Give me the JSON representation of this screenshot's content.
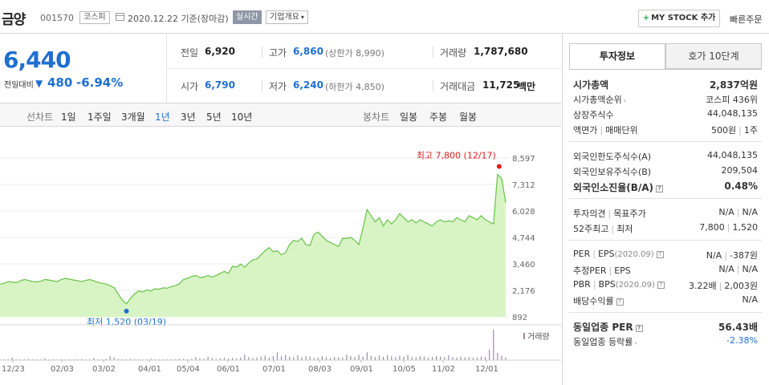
{
  "header": {
    "name": "금양",
    "code": "001570",
    "market": "코스피",
    "date": "2020.12.22 기준(장마감)",
    "realtime": "실시간",
    "company_info": "기업개요",
    "mystock_label": "MY STOCK 추가",
    "quick_order": "빠른주문"
  },
  "price": {
    "current": "6,440",
    "change_label": "전일대비",
    "change_arrow": "▼",
    "change_value": "480",
    "change_pct": "-6.94%"
  },
  "quote": {
    "prev_label": "전일",
    "prev": "6,920",
    "high_label": "고가",
    "high": "6,860",
    "upper_limit": "(상한가 8,990)",
    "volume_label": "거래량",
    "volume": "1,787,680",
    "open_label": "시가",
    "open": "6,790",
    "low_label": "저가",
    "low": "6,240",
    "lower_limit": "(하한가 4,850)",
    "amount_label": "거래대금",
    "amount": "11,725",
    "amount_unit": "백만"
  },
  "chart_tabs": {
    "line_label": "선차트",
    "line": [
      "1일",
      "1주일",
      "3개월",
      "1년",
      "3년",
      "5년",
      "10년"
    ],
    "active": "1년",
    "candle_label": "봉차트",
    "candle": [
      "일봉",
      "주봉",
      "월봉"
    ]
  },
  "chart_data": {
    "type": "area",
    "y_ticks": [
      "8,597",
      "7,312",
      "6,028",
      "4,744",
      "3,460",
      "2,176",
      "892"
    ],
    "ylim": [
      892,
      8597
    ],
    "x_ticks": [
      "12/23",
      "02/03",
      "03/02",
      "04/01",
      "05/04",
      "06/01",
      "07/01",
      "08/03",
      "09/01",
      "10/05",
      "11/02",
      "12/01"
    ],
    "values": [
      2480,
      2520,
      2600,
      2580,
      2550,
      2640,
      2700,
      2660,
      2600,
      2590,
      2620,
      2700,
      2680,
      2640,
      2600,
      2700,
      2760,
      2720,
      2680,
      2650,
      2600,
      2660,
      2700,
      2640,
      2560,
      2520,
      2480,
      2400,
      2300,
      2000,
      1700,
      1520,
      1800,
      2000,
      2150,
      2100,
      2200,
      2150,
      2250,
      2230,
      2300,
      2280,
      2360,
      2400,
      2500,
      2700,
      2760,
      2850,
      2900,
      2800,
      2820,
      2900,
      2820,
      2900,
      3000,
      3100,
      3000,
      3350,
      3300,
      3450,
      3300,
      3500,
      3650,
      3700,
      3900,
      4100,
      4250,
      4050,
      4100,
      3900,
      4000,
      4400,
      4600,
      4550,
      4700,
      4400,
      4350,
      4900,
      5000,
      4800,
      4600,
      4500,
      4400,
      4300,
      4700,
      4700,
      4750,
      4600,
      4400,
      5200,
      6100,
      5800,
      5500,
      5700,
      5300,
      5600,
      5400,
      5600,
      5900,
      5700,
      5500,
      5600,
      5450,
      5600,
      5500,
      5400,
      5300,
      5500,
      5600,
      5500,
      5550,
      5500,
      5700,
      5600,
      5500,
      5800,
      5700,
      5600,
      5800,
      5600,
      5500,
      5400,
      7800,
      7600,
      6440
    ],
    "volume": [
      2,
      1,
      1,
      6,
      2,
      1,
      2,
      3,
      1,
      1,
      1,
      4,
      2,
      1,
      1,
      2,
      1,
      1,
      1,
      2,
      3,
      1,
      2,
      5,
      2,
      1,
      3,
      9,
      6,
      3,
      2,
      1,
      3,
      2,
      1,
      2,
      1,
      3,
      1,
      2,
      1,
      1,
      2,
      2,
      3,
      3,
      2,
      3,
      7,
      4,
      3,
      8,
      5,
      3,
      4,
      6,
      4,
      5,
      4,
      6,
      12,
      7,
      5,
      6,
      8,
      10,
      6,
      9,
      18,
      9,
      12,
      8,
      7,
      11,
      6,
      9,
      8,
      5,
      6,
      9,
      7,
      5,
      8,
      7,
      6,
      13,
      9,
      7,
      12,
      8,
      18,
      10,
      7,
      11,
      8,
      12,
      9,
      7,
      10,
      8,
      12,
      7,
      6,
      9,
      8,
      6,
      7,
      9,
      8,
      7,
      11,
      7,
      6,
      8,
      6,
      7,
      5,
      6,
      8,
      7,
      24,
      70,
      17,
      10,
      6
    ],
    "max_label": "최고 7,800 (12/17)",
    "min_label": "최저 1,520 (03/19)",
    "volume_legend": "거래량",
    "colors": {
      "line": "#67c24a",
      "fill": "#d8f4c4",
      "max": "#e31b1b",
      "min": "#1f6fd1",
      "volume": "#9a8ca8"
    }
  },
  "invest": {
    "tab_info": "투자정보",
    "tab_ask": "호가 10단계",
    "rows": [
      {
        "l": "시가총액",
        "r": "2,837억원",
        "bold": true
      },
      {
        "l": "시가총액순위",
        "r": "코스피 436위"
      },
      {
        "l": "상장주식수",
        "r": "44,048,135"
      },
      {
        "l": "액면가",
        "l2": "매매단위",
        "r": "500원",
        "r2": "1주"
      },
      {
        "l": "외국인한도주식수(A)",
        "r": "44,048,135"
      },
      {
        "l": "외국인보유주식수(B)",
        "r": "209,504"
      },
      {
        "l": "외국인소진율(B/A)",
        "r": "0.48%",
        "bold": true
      },
      {
        "l": "투자의견",
        "l2": "목표주가",
        "r": "N/A",
        "r2": "N/A"
      },
      {
        "l": "52주최고",
        "l2": "최저",
        "r": "7,800",
        "r2": "1,520"
      },
      {
        "l": "PER",
        "l2": "EPS",
        "ld": "(2020.09)",
        "r": "N/A",
        "r2": "-387원"
      },
      {
        "l": "추정PER",
        "l2": "EPS",
        "r": "N/A",
        "r2": "N/A"
      },
      {
        "l": "PBR",
        "l2": "BPS",
        "ld": "(2020.09)",
        "r": "3.22배",
        "r2": "2,003원"
      },
      {
        "l": "배당수익률",
        "r": "N/A"
      },
      {
        "l": "동일업종 PER",
        "r": "56.43배",
        "bold": true
      },
      {
        "l": "동일업종 등락률",
        "r": "-2.38%"
      }
    ]
  }
}
